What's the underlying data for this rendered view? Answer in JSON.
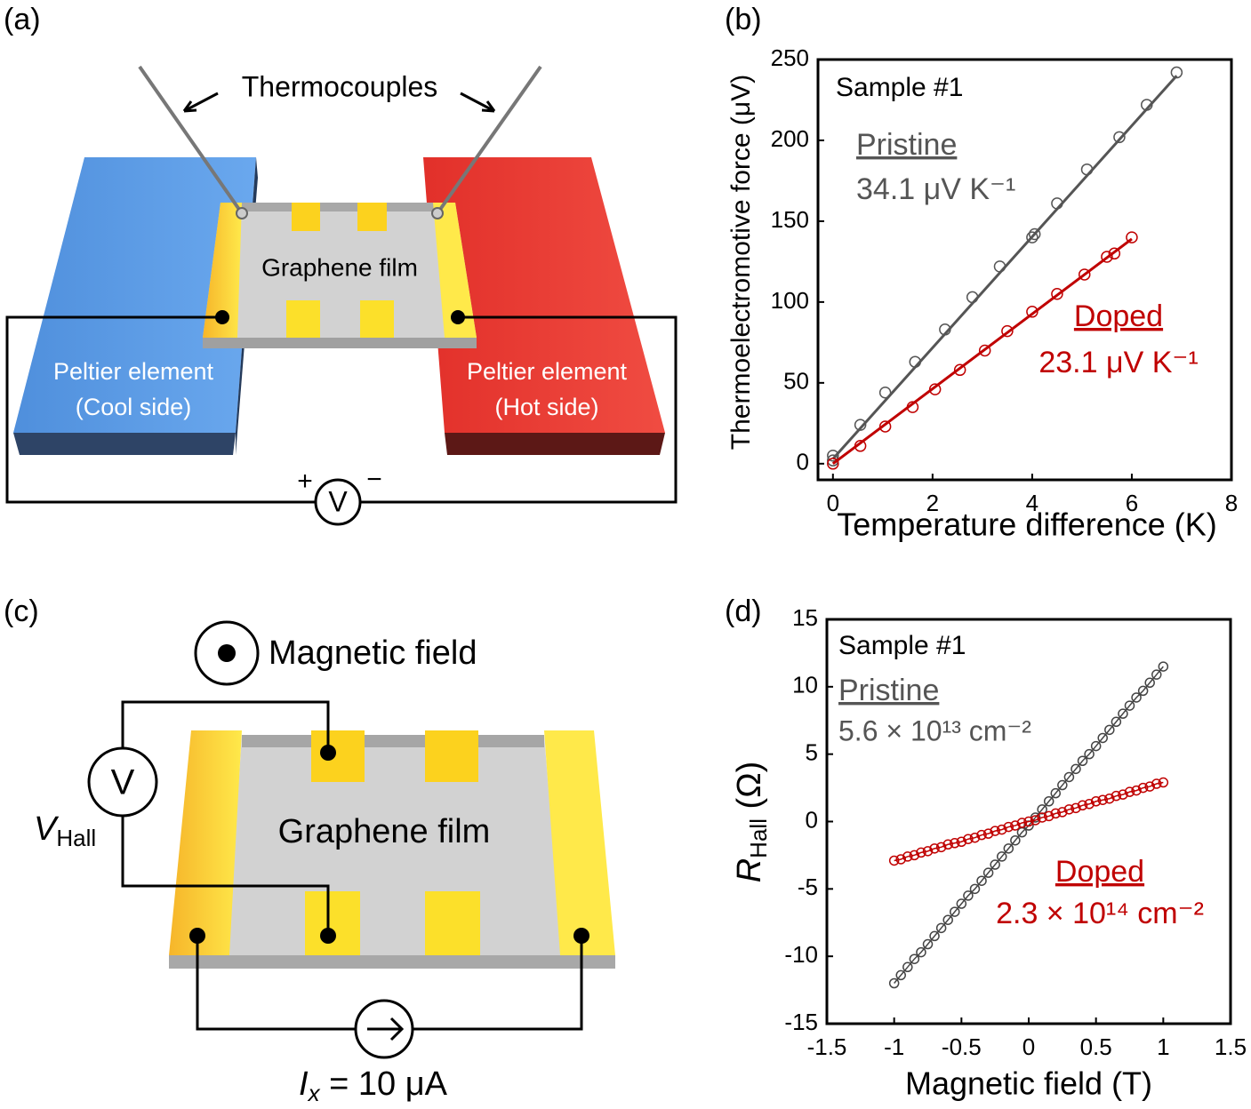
{
  "diagram_a": {
    "panel_label": "(a)",
    "thermocouples": "Thermocouples",
    "film": "Graphene film",
    "cool_label": [
      "Peltier element",
      "(Cool side)"
    ],
    "hot_label": [
      "Peltier element",
      "(Hot side)"
    ],
    "plus": "+",
    "meter": "V",
    "minus": "−"
  },
  "diagram_c": {
    "panel_label": "(c)",
    "field": "Magnetic field",
    "meter": "V",
    "hall_voltage": {
      "symbol": "V",
      "subscript": "Hall"
    },
    "film": "Graphene film",
    "current": {
      "symbol": "I",
      "subscript": "x",
      "text": " = 10 μA"
    }
  },
  "chart_data": [
    {
      "type": "scatter",
      "panel_label": "(b)",
      "x_label": "Temperature difference (K)",
      "y_label": "Thermoelectromotive force  (μV)",
      "xlim": [
        -0.3,
        8
      ],
      "xticks": [
        0,
        2,
        4,
        6,
        8
      ],
      "ylim": [
        -10,
        250
      ],
      "yticks": [
        0,
        50,
        100,
        150,
        200,
        250
      ],
      "marker": "circle-open",
      "series": [
        {
          "name": "Pristine",
          "color": "#555555",
          "x": [
            0,
            0,
            0.55,
            1.05,
            1.65,
            2.25,
            2.8,
            3.35,
            4.0,
            4.05,
            4.5,
            5.1,
            5.75,
            6.3,
            6.9
          ],
          "values": [
            2,
            5,
            24,
            44,
            63,
            83,
            103,
            122,
            140,
            142,
            161,
            182,
            202,
            222,
            242
          ],
          "fit_x": [
            0,
            6.9
          ],
          "fit_values": [
            3,
            240
          ]
        },
        {
          "name": "Doped",
          "color": "#c00000",
          "x": [
            0,
            0.55,
            1.05,
            1.6,
            2.05,
            2.55,
            3.05,
            3.5,
            4.0,
            4.5,
            5.05,
            5.5,
            5.65,
            6.0
          ],
          "values": [
            0,
            11,
            23,
            35,
            46,
            58,
            70,
            82,
            94,
            105,
            117,
            128,
            130,
            140
          ],
          "fit_x": [
            0,
            6
          ],
          "fit_values": [
            0,
            139
          ]
        }
      ],
      "annotations": [
        {
          "text": "Sample #1",
          "color": "#000000",
          "underline": false
        },
        {
          "text": "Pristine",
          "color": "#555555",
          "underline": true
        },
        {
          "text": "34.1 μV K⁻¹",
          "color": "#555555",
          "underline": false
        },
        {
          "text": "Doped",
          "color": "#c00000",
          "underline": true
        },
        {
          "text": "23.1 μV K⁻¹",
          "color": "#c00000",
          "underline": false
        }
      ]
    },
    {
      "type": "line",
      "panel_label": "(d)",
      "x_label": "Magnetic field (T)",
      "y_label": {
        "symbol": "R",
        "subscript": "Hall",
        "unit": " (Ω)"
      },
      "xlim": [
        -1.5,
        1.5
      ],
      "xticks": [
        -1.5,
        -1,
        -0.5,
        0,
        0.5,
        1,
        1.5
      ],
      "ylim": [
        -15,
        15
      ],
      "yticks": [
        -15,
        -10,
        -5,
        0,
        5,
        10,
        15
      ],
      "marker": "circle-open",
      "x": [
        -1,
        -0.95,
        -0.9,
        -0.85,
        -0.8,
        -0.75,
        -0.7,
        -0.65,
        -0.6,
        -0.55,
        -0.5,
        -0.45,
        -0.4,
        -0.35,
        -0.3,
        -0.25,
        -0.2,
        -0.15,
        -0.1,
        -0.05,
        0,
        0.05,
        0.1,
        0.15,
        0.2,
        0.25,
        0.3,
        0.35,
        0.4,
        0.45,
        0.5,
        0.55,
        0.6,
        0.65,
        0.7,
        0.75,
        0.8,
        0.85,
        0.9,
        0.95,
        1
      ],
      "series": [
        {
          "name": "Pristine",
          "color": "#444444",
          "values": [
            -12.0,
            -11.4,
            -10.8,
            -10.2,
            -9.7,
            -9.1,
            -8.5,
            -7.9,
            -7.3,
            -6.7,
            -6.1,
            -5.5,
            -5.0,
            -4.4,
            -3.8,
            -3.2,
            -2.6,
            -2.0,
            -1.4,
            -0.8,
            -0.3,
            0.3,
            0.9,
            1.5,
            2.1,
            2.7,
            3.3,
            3.9,
            4.5,
            5.0,
            5.6,
            6.2,
            6.8,
            7.4,
            8.0,
            8.6,
            9.2,
            9.7,
            10.3,
            10.9,
            11.5
          ]
        },
        {
          "name": "Doped",
          "color": "#c00000",
          "values": [
            -2.9,
            -2.8,
            -2.6,
            -2.5,
            -2.3,
            -2.2,
            -2.0,
            -1.9,
            -1.7,
            -1.6,
            -1.5,
            -1.3,
            -1.2,
            -1.0,
            -0.9,
            -0.7,
            -0.6,
            -0.4,
            -0.3,
            -0.1,
            0,
            0.1,
            0.3,
            0.4,
            0.6,
            0.7,
            0.9,
            1.0,
            1.2,
            1.3,
            1.5,
            1.6,
            1.7,
            1.9,
            2.0,
            2.2,
            2.3,
            2.5,
            2.6,
            2.8,
            2.9
          ]
        }
      ],
      "annotations": [
        {
          "text": "Sample #1",
          "color": "#000000",
          "underline": false
        },
        {
          "text": "Pristine",
          "color": "#555555",
          "underline": true
        },
        {
          "text": "5.6 × 10¹³ cm⁻²",
          "color": "#555555",
          "underline": false
        },
        {
          "text": "Doped",
          "color": "#c00000",
          "underline": true
        },
        {
          "text": "2.3 × 10¹⁴ cm⁻²",
          "color": "#c00000",
          "underline": false
        }
      ]
    }
  ]
}
